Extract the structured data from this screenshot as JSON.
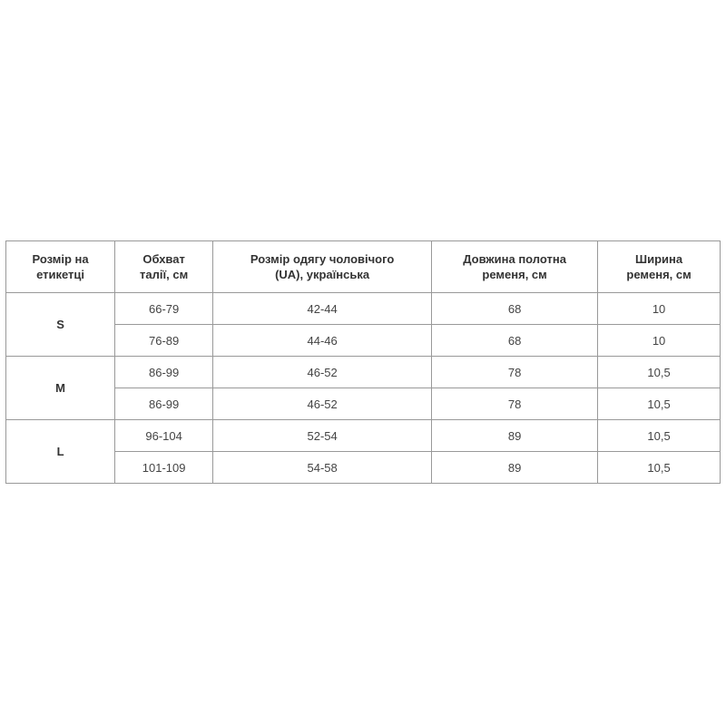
{
  "headers": [
    "Розмір на етикетці",
    "Обхват талії, см",
    "Розмір одягу чоловічого (UA), українська",
    "Довжина полотна ременя, см",
    "Ширина ременя, см"
  ],
  "header_lines": [
    [
      "Розмір на",
      "етикетці"
    ],
    [
      "Обхват",
      "талії, см"
    ],
    [
      "Розмір одягу чоловічого",
      "(UA), українська"
    ],
    [
      "Довжина полотна",
      "ременя, см"
    ],
    [
      "Ширина",
      "ременя, см"
    ]
  ],
  "groups": [
    {
      "size": "S",
      "rows": [
        [
          "66-79",
          "42-44",
          "68",
          "10"
        ],
        [
          "76-89",
          "44-46",
          "68",
          "10"
        ]
      ]
    },
    {
      "size": "M",
      "rows": [
        [
          "86-99",
          "46-52",
          "78",
          "10,5"
        ],
        [
          "86-99",
          "46-52",
          "78",
          "10,5"
        ]
      ]
    },
    {
      "size": "L",
      "rows": [
        [
          "96-104",
          "52-54",
          "89",
          "10,5"
        ],
        [
          "101-109",
          "54-58",
          "89",
          "10,5"
        ]
      ]
    }
  ]
}
